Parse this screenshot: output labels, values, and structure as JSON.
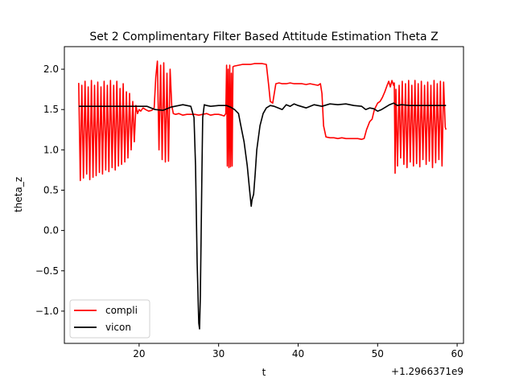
{
  "chart_data": {
    "type": "line",
    "title": "Set 2 Complimentary Filter Based Attitude Estimation Theta Z",
    "xlabel": "t",
    "ylabel": "theta_z",
    "x_offset_label": "+1.2966371e9",
    "xlim": [
      10.6,
      60.8
    ],
    "ylim": [
      -1.4,
      2.28
    ],
    "x_ticks": [
      20,
      30,
      40,
      50,
      60
    ],
    "x_tick_labels": [
      "20",
      "30",
      "40",
      "50",
      "60"
    ],
    "y_ticks": [
      -1.0,
      -0.5,
      0.0,
      0.5,
      1.0,
      1.5,
      2.0
    ],
    "y_tick_labels": [
      "−1.0",
      "−0.5",
      "0.0",
      "0.5",
      "1.0",
      "1.5",
      "2.0"
    ],
    "grid": false,
    "legend_position": "lower-left",
    "series": [
      {
        "name": "compli",
        "color": "#ff0000",
        "x": [
          12.4,
          12.6,
          12.8,
          13.0,
          13.2,
          13.4,
          13.6,
          13.8,
          14.0,
          14.2,
          14.4,
          14.6,
          14.8,
          15.0,
          15.2,
          15.4,
          15.6,
          15.8,
          16.0,
          16.2,
          16.4,
          16.6,
          16.8,
          17.0,
          17.2,
          17.4,
          17.6,
          17.8,
          18.0,
          18.2,
          18.4,
          18.6,
          18.8,
          19.0,
          19.2,
          19.4,
          19.6,
          19.8,
          20.0,
          20.2,
          20.5,
          20.8,
          21.2,
          21.6,
          21.9,
          22.1,
          22.3,
          22.5,
          22.7,
          22.9,
          23.1,
          23.3,
          23.5,
          23.7,
          23.9,
          24.1,
          24.3,
          24.6,
          25.0,
          25.5,
          26.0,
          26.5,
          27.0,
          27.5,
          28.0,
          28.5,
          29.0,
          29.5,
          30.0,
          30.4,
          30.7,
          30.9,
          31.0,
          31.1,
          31.2,
          31.3,
          31.4,
          31.5,
          31.6,
          31.7,
          31.8,
          32.0,
          32.5,
          33.0,
          33.5,
          34.0,
          34.5,
          35.0,
          35.5,
          36.0,
          36.3,
          36.5,
          36.8,
          37.2,
          37.6,
          38.0,
          38.5,
          39.0,
          39.5,
          40.0,
          40.5,
          41.0,
          41.5,
          42.0,
          42.5,
          42.8,
          43.0,
          43.2,
          43.5,
          44.0,
          44.5,
          45.0,
          45.5,
          46.0,
          46.5,
          47.0,
          47.5,
          48.0,
          48.3,
          48.6,
          49.0,
          49.3,
          49.6,
          50.0,
          50.3,
          50.6,
          50.9,
          51.2,
          51.4,
          51.6,
          51.8,
          52.0,
          52.1,
          52.2,
          52.3,
          52.5,
          52.7,
          52.9,
          53.1,
          53.3,
          53.5,
          53.7,
          53.9,
          54.1,
          54.3,
          54.5,
          54.7,
          54.9,
          55.1,
          55.3,
          55.5,
          55.7,
          55.9,
          56.1,
          56.3,
          56.5,
          56.7,
          56.9,
          57.1,
          57.3,
          57.5,
          57.7,
          57.9,
          58.1,
          58.3,
          58.5,
          58.6
        ],
        "y": [
          1.83,
          0.62,
          1.8,
          0.65,
          1.85,
          0.7,
          1.78,
          0.63,
          1.86,
          0.66,
          1.8,
          0.68,
          1.84,
          0.72,
          1.78,
          0.7,
          1.85,
          0.75,
          1.8,
          0.73,
          1.86,
          0.78,
          1.8,
          0.75,
          1.85,
          0.8,
          1.76,
          0.82,
          1.82,
          0.85,
          1.72,
          0.9,
          1.7,
          1.0,
          1.6,
          1.1,
          1.55,
          1.45,
          1.5,
          1.48,
          1.52,
          1.5,
          1.48,
          1.49,
          1.52,
          1.9,
          2.1,
          1.0,
          2.05,
          0.88,
          2.08,
          0.85,
          1.95,
          0.86,
          2.0,
          1.55,
          1.45,
          1.44,
          1.45,
          1.43,
          1.44,
          1.44,
          1.44,
          1.43,
          1.44,
          1.45,
          1.43,
          1.44,
          1.44,
          1.43,
          1.42,
          1.45,
          2.05,
          0.8,
          2.0,
          0.78,
          2.05,
          0.79,
          1.95,
          0.8,
          2.03,
          2.04,
          2.05,
          2.06,
          2.06,
          2.06,
          2.07,
          2.07,
          2.07,
          2.06,
          1.8,
          1.6,
          1.58,
          1.82,
          1.83,
          1.82,
          1.82,
          1.83,
          1.82,
          1.82,
          1.82,
          1.81,
          1.82,
          1.81,
          1.8,
          1.82,
          1.7,
          1.3,
          1.16,
          1.15,
          1.15,
          1.14,
          1.15,
          1.14,
          1.14,
          1.14,
          1.14,
          1.13,
          1.14,
          1.25,
          1.35,
          1.38,
          1.5,
          1.58,
          1.6,
          1.65,
          1.72,
          1.8,
          1.85,
          1.78,
          1.86,
          1.8,
          1.83,
          0.71,
          1.75,
          0.8,
          1.8,
          0.9,
          1.85,
          0.82,
          1.82,
          0.78,
          1.86,
          0.85,
          1.8,
          0.8,
          1.86,
          0.83,
          1.82,
          0.79,
          1.85,
          0.88,
          1.8,
          0.82,
          1.84,
          0.86,
          1.8,
          0.78,
          1.86,
          0.84,
          1.82,
          0.88,
          1.85,
          0.8,
          1.84,
          1.28,
          1.25
        ]
      },
      {
        "name": "vicon",
        "color": "#000000",
        "x": [
          12.4,
          14.0,
          16.0,
          18.0,
          20.0,
          21.0,
          22.0,
          23.0,
          24.0,
          25.0,
          25.5,
          26.0,
          26.5,
          26.9,
          27.1,
          27.3,
          27.5,
          27.6,
          27.7,
          27.8,
          27.9,
          28.0,
          28.2,
          28.5,
          29.0,
          30.0,
          31.0,
          31.5,
          32.0,
          32.5,
          32.8,
          33.2,
          33.6,
          33.9,
          34.1,
          34.2,
          34.4,
          34.6,
          34.8,
          35.2,
          35.6,
          36.0,
          36.5,
          37.0,
          37.5,
          38.0,
          38.5,
          39.0,
          39.5,
          40.0,
          41.0,
          42.0,
          43.0,
          44.0,
          45.0,
          46.0,
          47.0,
          48.0,
          48.5,
          49.0,
          49.5,
          50.0,
          50.5,
          51.0,
          51.5,
          52.0,
          52.5,
          53.0,
          54.0,
          55.0,
          56.0,
          57.0,
          58.0,
          58.6
        ],
        "y": [
          1.54,
          1.54,
          1.54,
          1.54,
          1.54,
          1.54,
          1.5,
          1.49,
          1.53,
          1.55,
          1.56,
          1.55,
          1.54,
          1.4,
          0.8,
          -0.4,
          -1.15,
          -1.22,
          -0.8,
          -0.1,
          0.7,
          1.4,
          1.56,
          1.55,
          1.54,
          1.55,
          1.55,
          1.53,
          1.5,
          1.45,
          1.3,
          1.1,
          0.8,
          0.5,
          0.3,
          0.38,
          0.45,
          0.7,
          1.0,
          1.3,
          1.45,
          1.52,
          1.55,
          1.54,
          1.52,
          1.5,
          1.56,
          1.54,
          1.57,
          1.55,
          1.52,
          1.56,
          1.54,
          1.57,
          1.56,
          1.57,
          1.55,
          1.54,
          1.5,
          1.52,
          1.51,
          1.48,
          1.5,
          1.53,
          1.56,
          1.58,
          1.55,
          1.56,
          1.55,
          1.55,
          1.55,
          1.55,
          1.55,
          1.55
        ]
      }
    ]
  }
}
